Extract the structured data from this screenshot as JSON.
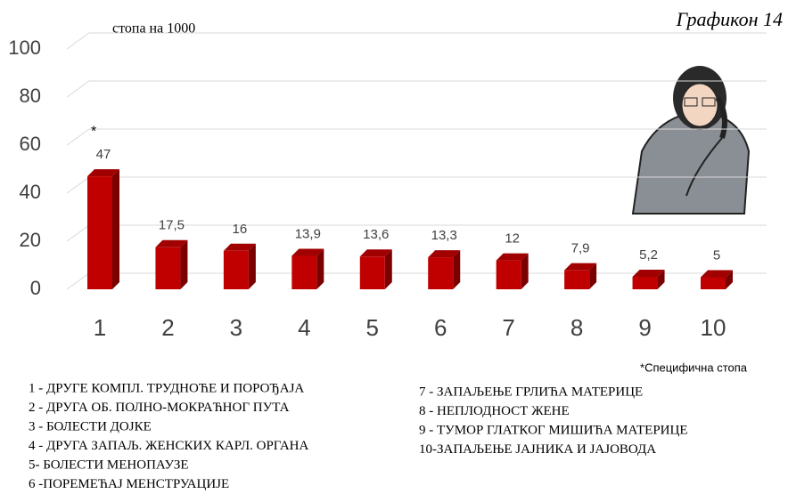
{
  "chart_data": {
    "type": "bar",
    "title": "Графикон 14",
    "y_label": "стопа на 1000",
    "annotation": "*",
    "footnote": "*Специфична стопа",
    "categories": [
      "1",
      "2",
      "3",
      "4",
      "5",
      "6",
      "7",
      "8",
      "9",
      "10"
    ],
    "values": [
      47,
      17.5,
      16,
      13.9,
      13.6,
      13.3,
      12,
      7.9,
      5.2,
      5
    ],
    "value_labels": [
      "47",
      "17,5",
      "16",
      "13,9",
      "13,6",
      "13,3",
      "12",
      "7,9",
      "5,2",
      "5"
    ],
    "color": "#c00000",
    "ylim": [
      0,
      100
    ],
    "yticks": [
      0,
      20,
      40,
      60,
      80,
      100
    ],
    "grid": true,
    "legend_items": [
      "1 - ДРУГЕ КОМПЛ. ТРУДНОЋЕ И ПОРОЂАЈА",
      "2 - ДРУГА ОБ. ПОЛНО-МОКРАЋНОГ ПУТА",
      "3 - БОЛЕСТИ ДОЈКЕ",
      "4 - ДРУГА ЗАПАЉ. ЖЕНСКИХ КАРЛ. ОРГАНА",
      "5- БОЛЕСТИ МЕНОПАУЗЕ",
      "6 -ПОРЕМЕЋАЈ МЕНСТРУАЦИЈЕ",
      "7 - ЗАПАЉЕЊЕ ГРЛИЋА МАТЕРИЦЕ",
      "8 - НЕПЛОДНОСТ ЖЕНЕ",
      "9 - ТУМОР ГЛАТКОГ МИШИЋА МАТЕРИЦЕ",
      "10-ЗАПАЉЕЊЕ ЈАЈНИКА И ЈАЈОВОДА"
    ]
  }
}
